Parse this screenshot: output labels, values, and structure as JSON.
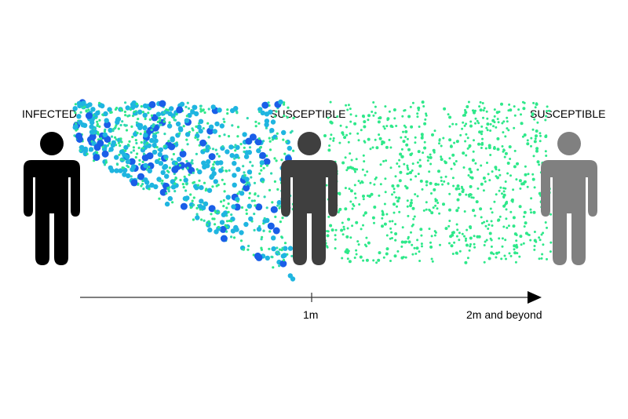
{
  "labels": {
    "infected": "INFECTED",
    "susceptible_near": "SUSCEPTIBLE",
    "susceptible_far": "SUSCEPTIBLE"
  },
  "axis": {
    "tick_1m": "1m",
    "end_label": "2m and beyond"
  },
  "colors": {
    "infected_person": "#000000",
    "susceptible_near_person": "#3f3f3f",
    "susceptible_far_person": "#808080",
    "large_droplet": "#1a5ee8",
    "medium_droplet": "#1fb5e0",
    "small_aerosol": "#2ee88a"
  }
}
